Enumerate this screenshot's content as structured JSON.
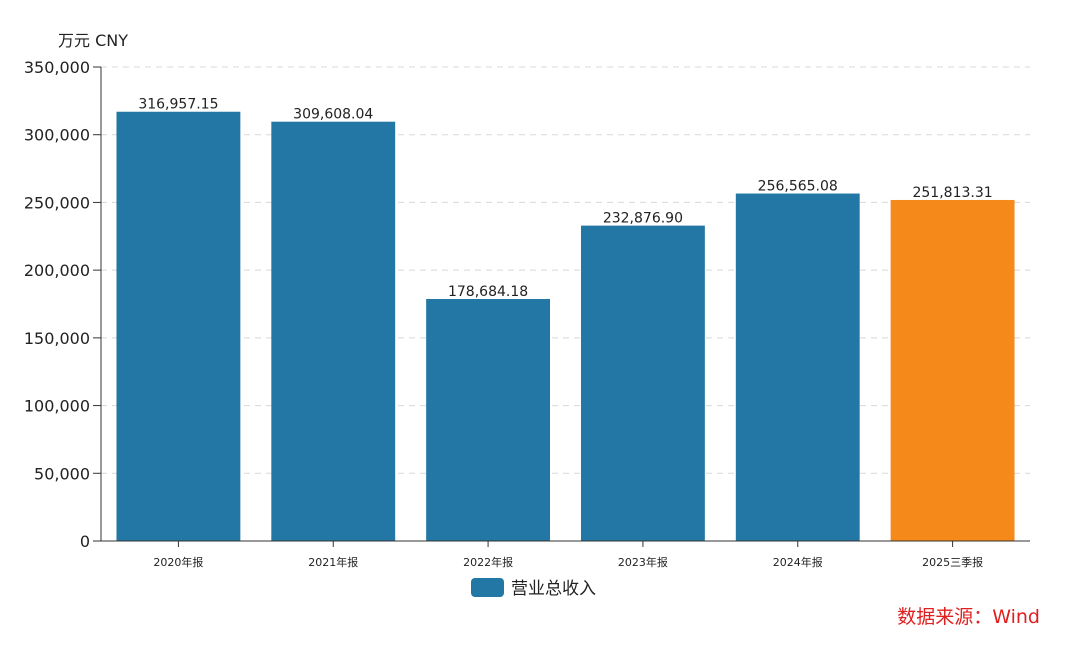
{
  "chart_data": {
    "type": "bar",
    "unit_label": "万元  CNY",
    "categories": [
      "2020年报",
      "2021年报",
      "2022年报",
      "2023年报",
      "2024年报",
      "2025三季报"
    ],
    "series": [
      {
        "name": "营业总收入",
        "values": [
          316957.15,
          309608.04,
          178684.18,
          232876.9,
          256565.08,
          251813.31
        ],
        "value_labels": [
          "316,957.15",
          "309,608.04",
          "178,684.18",
          "232,876.90",
          "256,565.08",
          "251,813.31"
        ]
      }
    ],
    "ylim": [
      0,
      350000
    ],
    "yticks": [
      0,
      50000,
      100000,
      150000,
      200000,
      250000,
      300000,
      350000
    ],
    "ytick_labels": [
      "0",
      "50,000",
      "100,000",
      "150,000",
      "200,000",
      "250,000",
      "300,000",
      "350,000"
    ],
    "grid": true,
    "legend_position": "bottom-center",
    "colors": {
      "bar": "#2377a4",
      "highlight": "#f5891a",
      "grid": "#d8d8d8",
      "axis": "#333333"
    },
    "highlight_index": 5
  },
  "source": {
    "text": "数据来源：Wind",
    "color": "#e02020"
  }
}
